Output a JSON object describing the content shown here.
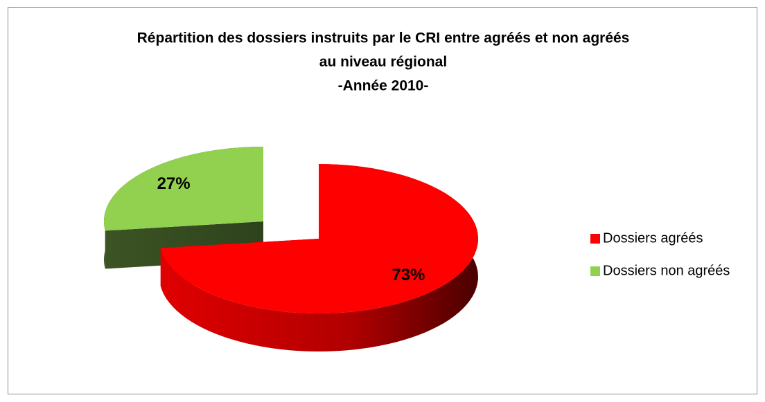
{
  "chart_data": {
    "type": "pie3d",
    "title": [
      "Répartition des dossiers instruits par le CRI entre agréés et non agréés",
      "au niveau régional",
      "-Année 2010-"
    ],
    "categories": [
      "Dossiers agréés",
      "Dossiers non agréés"
    ],
    "values": [
      73,
      27
    ],
    "value_labels": [
      "73%",
      "27%"
    ],
    "colors": [
      "#ff0000",
      "#92d050"
    ],
    "exploded": [
      false,
      true
    ],
    "legend": "right"
  }
}
